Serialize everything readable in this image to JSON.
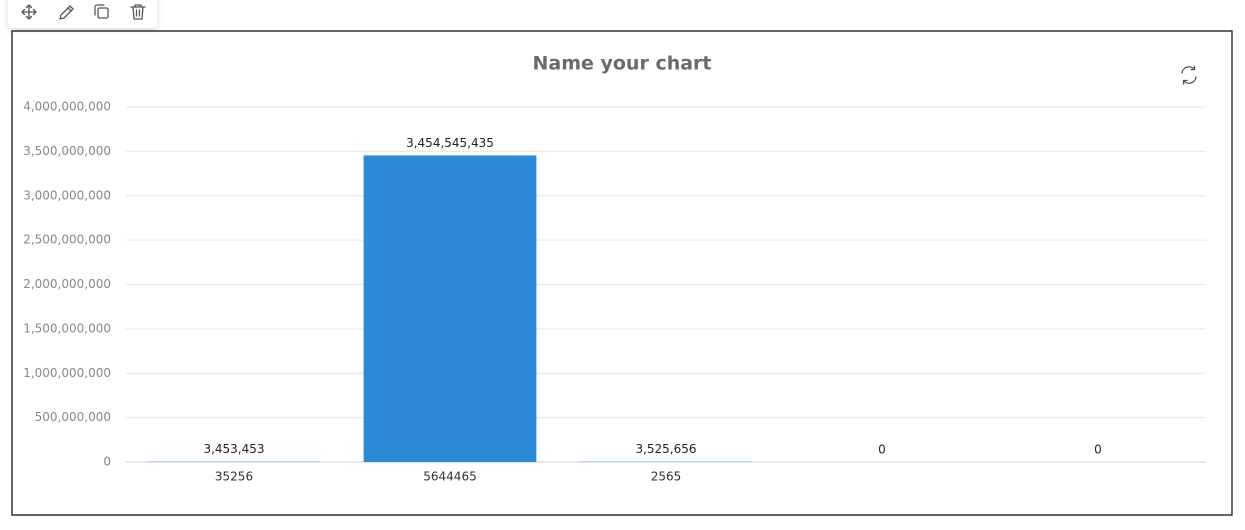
{
  "chart_data": {
    "type": "bar",
    "title": "Name your chart",
    "categories": [
      "35256",
      "5644465",
      "2565",
      null,
      null
    ],
    "values": [
      3453453,
      3454545435,
      3525656,
      0,
      0
    ],
    "value_labels": [
      "3,453,453",
      "3,454,545,435",
      "3,525,656",
      "0",
      "0"
    ],
    "color": "#2d8ad8",
    "ylim": [
      0,
      4000000000
    ],
    "yticks": [
      0,
      {
        "value": 500000000,
        "label": "500,000,000"
      },
      {
        "value": 1000000000,
        "label": "1,000,000,000"
      },
      {
        "value": 1500000000,
        "label": "1,500,000,000"
      },
      {
        "value": 2000000000,
        "label": "2,000,000,000"
      },
      {
        "value": 2500000000,
        "label": "2,500,000,000"
      },
      {
        "value": 3000000000,
        "label": "3,000,000,000"
      },
      {
        "value": 3500000000,
        "label": "3,500,000,000"
      },
      {
        "value": 4000000000,
        "label": "4,000,000,000"
      }
    ],
    "grid": true
  }
}
